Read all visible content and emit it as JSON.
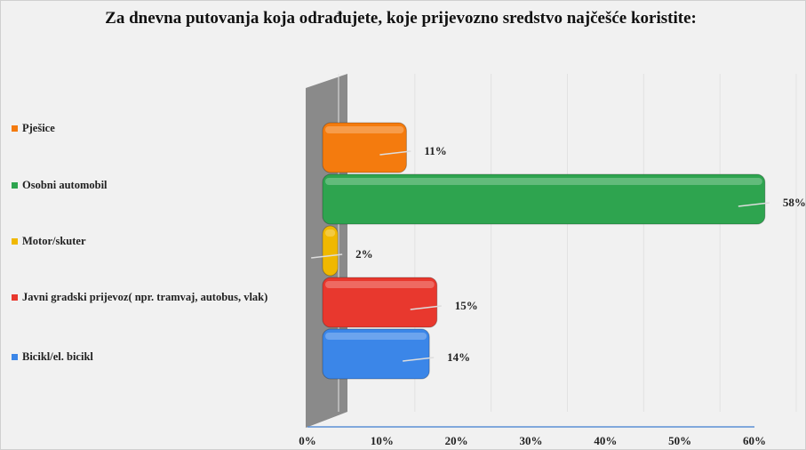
{
  "chart_data": {
    "type": "bar",
    "orientation": "horizontal",
    "title": "Za dnevna putovanja koja odrađujete, koje prijevozno sredstvo najčešće koristite:",
    "categories": [
      "Pješice",
      "Osobni automobil",
      "Motor/skuter",
      "Javni gradski prijevoz( npr. tramvaj, autobus, vlak)",
      "Bicikl/el. bicikl"
    ],
    "values": [
      11,
      58,
      2,
      15,
      14
    ],
    "value_labels": [
      "11%",
      "58%",
      "2%",
      "15%",
      "14%"
    ],
    "colors": [
      "#f47b0e",
      "#2ea44f",
      "#f0b800",
      "#e8382e",
      "#3b86e8"
    ],
    "xlim": [
      0,
      60
    ],
    "xticks": [
      {
        "value": 0,
        "label": "0%"
      },
      {
        "value": 10,
        "label": "10%"
      },
      {
        "value": 20,
        "label": "20%"
      },
      {
        "value": 30,
        "label": "30%"
      },
      {
        "value": 40,
        "label": "40%"
      },
      {
        "value": 50,
        "label": "50%"
      },
      {
        "value": 60,
        "label": "60%"
      }
    ],
    "legend": "left"
  }
}
